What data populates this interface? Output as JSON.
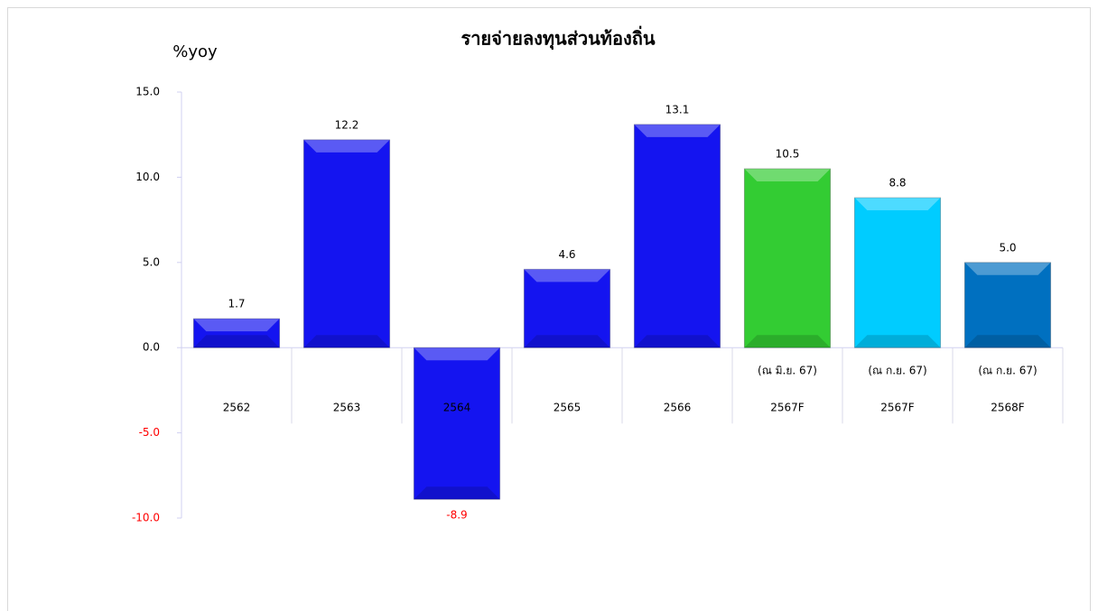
{
  "chart_data": {
    "type": "bar",
    "title": "รายจ่ายลงทุนส่วนท้องถิ่น",
    "y_label": "%yoy",
    "categories": [
      "2562",
      "2563",
      "2564",
      "2565",
      "2566",
      "2567F",
      "2567F",
      "2568F"
    ],
    "category_notes": [
      null,
      null,
      null,
      null,
      null,
      "(ณ มิ.ย. 67)",
      "(ณ ก.ย. 67)",
      "(ณ ก.ย. 67)"
    ],
    "values": [
      1.7,
      12.2,
      -8.9,
      4.6,
      13.1,
      10.5,
      8.8,
      5
    ],
    "value_labels": [
      "1.7",
      "12.2",
      "-8.9",
      "4.6",
      "13.1",
      "10.5",
      "8.8",
      "5.0"
    ],
    "colors": [
      "#1414f0",
      "#1414f0",
      "#1414f0",
      "#1414f0",
      "#1414f0",
      "#33cc33",
      "#00ccff",
      "#0070c0"
    ],
    "negative_label_color": "#ff0000",
    "ylim": [
      -10,
      15
    ],
    "yticks": [
      {
        "value": -10,
        "label": "-10.0"
      },
      {
        "value": -5,
        "label": "-5.0"
      },
      {
        "value": 0,
        "label": "0.0"
      },
      {
        "value": 5,
        "label": "5.0"
      },
      {
        "value": 10,
        "label": "10.0"
      },
      {
        "value": 15,
        "label": "15.0"
      }
    ]
  }
}
